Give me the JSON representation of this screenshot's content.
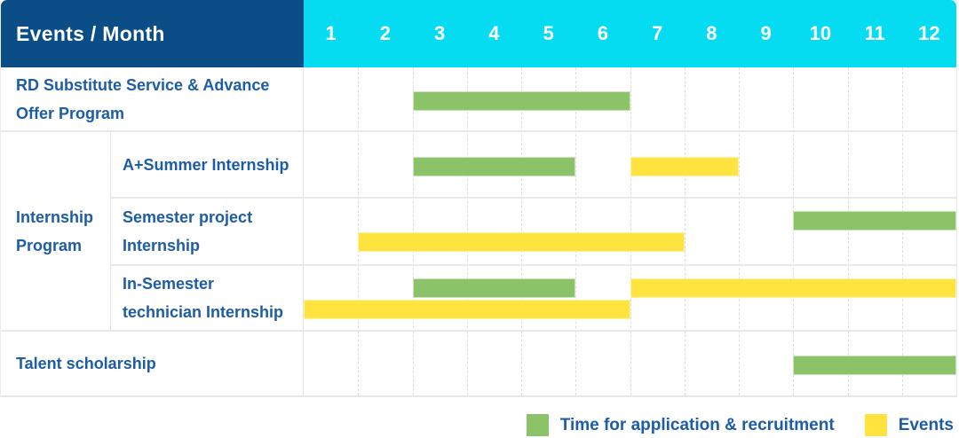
{
  "header": {
    "label": "Events / Month",
    "months": [
      "1",
      "2",
      "3",
      "4",
      "5",
      "6",
      "7",
      "8",
      "9",
      "10",
      "11",
      "12"
    ]
  },
  "colors": {
    "header_bg": "#0B4D86",
    "months_bg": "#05DCF2",
    "application_green": "#8CC368",
    "events_yellow": "#FFE33E",
    "label_text_blue": "#1D5CA6"
  },
  "legend": {
    "items": [
      {
        "key": "application",
        "label": "Time for application & recruitment",
        "color": "#8CC368"
      },
      {
        "key": "events",
        "label": "Events",
        "color": "#FFE33E"
      }
    ]
  },
  "chart_data": {
    "type": "gantt",
    "x_axis": {
      "label": "Month",
      "ticks": [
        1,
        2,
        3,
        4,
        5,
        6,
        7,
        8,
        9,
        10,
        11,
        12
      ],
      "range": [
        1,
        12
      ],
      "gridlines": "dashed-vertical"
    },
    "series_legend": {
      "application": "Time for application & recruitment",
      "events": "Events"
    },
    "rows": [
      {
        "label": "RD Substitute Service & Advance Offer Program",
        "group": null,
        "bars": [
          {
            "series": "application",
            "start_month": 3,
            "end_month": 6,
            "lane": "center"
          }
        ]
      },
      {
        "label": "A+Summer Internship",
        "group": "Internship Program",
        "bars": [
          {
            "series": "application",
            "start_month": 3,
            "end_month": 5,
            "lane": "center"
          },
          {
            "series": "events",
            "start_month": 7,
            "end_month": 8,
            "lane": "center"
          }
        ]
      },
      {
        "label": "Semester project Internship",
        "group": "Internship Program",
        "bars": [
          {
            "series": "application",
            "start_month": 10,
            "end_month": 12,
            "lane": "top"
          },
          {
            "series": "events",
            "start_month": 2,
            "end_month": 7,
            "lane": "bottom"
          }
        ]
      },
      {
        "label": "In-Semester technician Internship",
        "group": "Internship Program",
        "bars": [
          {
            "series": "application",
            "start_month": 3,
            "end_month": 5,
            "lane": "top"
          },
          {
            "series": "events",
            "start_month": 7,
            "end_month": 12,
            "lane": "top"
          },
          {
            "series": "events",
            "start_month": 1,
            "end_month": 6,
            "lane": "bottom"
          }
        ]
      },
      {
        "label": "Talent scholarship",
        "group": null,
        "bars": [
          {
            "series": "application",
            "start_month": 10,
            "end_month": 12,
            "lane": "center"
          }
        ]
      }
    ]
  }
}
